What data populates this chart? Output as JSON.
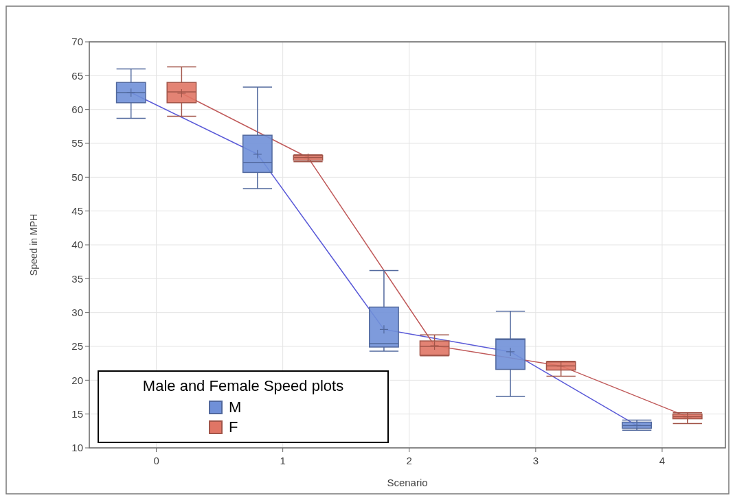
{
  "chart_data": {
    "type": "box",
    "xlabel": "Scenario",
    "ylabel": "Speed in MPH",
    "legend_title": "Male and Female Speed plots",
    "xlim": [
      -0.53,
      4.5
    ],
    "xticks": [
      0,
      1,
      2,
      3,
      4
    ],
    "ylim": [
      10,
      70
    ],
    "yticks": [
      10,
      15,
      20,
      25,
      30,
      35,
      40,
      45,
      50,
      55,
      60,
      65,
      70
    ],
    "grid": true,
    "legend": "bottom left",
    "series": [
      {
        "type": "line",
        "color": "#5a5ad8",
        "x": [
          -0.2,
          0.8,
          1.8,
          2.8,
          3.8
        ],
        "values": [
          62.5,
          53.4,
          27.5,
          24.2,
          13.3
        ],
        "marker": "none"
      },
      {
        "type": "line",
        "color": "#c05a5a",
        "x": [
          0.2,
          1.2,
          2.2,
          3.2,
          4.2
        ],
        "values": [
          62.4,
          52.9,
          25.1,
          22.1,
          14.6
        ],
        "marker": "none"
      },
      {
        "name": "M",
        "color": "#7090d8",
        "x": [
          -0.2,
          0.8,
          1.8,
          2.8,
          3.8
        ],
        "boxes": [
          {
            "low": 58.7,
            "q1": 61,
            "median": 62.5,
            "q3": 64,
            "high": 66,
            "mean": 62.5
          },
          {
            "low": 48.3,
            "q1": 50.7,
            "median": 52.2,
            "q3": 56.2,
            "high": 63.3,
            "mean": 53.4
          },
          {
            "low": 24.3,
            "q1": 24.9,
            "median": 25.4,
            "q3": 30.8,
            "high": 36.2,
            "mean": 27.5
          },
          {
            "low": 17.6,
            "q1": 21.6,
            "median": 26,
            "q3": 26.1,
            "high": 30.2,
            "mean": 24.2
          },
          {
            "low": 12.6,
            "q1": 12.9,
            "median": 13.3,
            "q3": 13.8,
            "high": 14.1,
            "mean": 13.3
          }
        ]
      },
      {
        "name": "F",
        "color": "#e07565",
        "x": [
          0.2,
          1.2,
          2.2,
          3.2,
          4.2
        ],
        "boxes": [
          {
            "low": 59,
            "q1": 61,
            "median": 62.6,
            "q3": 64,
            "high": 66.3,
            "mean": 62.4
          },
          {
            "low": 52.3,
            "q1": 52.5,
            "median": 52.9,
            "q3": 53.2,
            "high": 53.3,
            "mean": 52.9
          },
          {
            "low": 23.6,
            "q1": 23.7,
            "median": 25,
            "q3": 25.8,
            "high": 26.7,
            "mean": 25.1
          },
          {
            "low": 20.6,
            "q1": 21.5,
            "median": 22.1,
            "q3": 22.7,
            "high": 22.8,
            "mean": 22.1
          },
          {
            "low": 13.6,
            "q1": 14.3,
            "median": 14.6,
            "q3": 15,
            "high": 15.2,
            "mean": 14.6
          }
        ]
      }
    ]
  }
}
